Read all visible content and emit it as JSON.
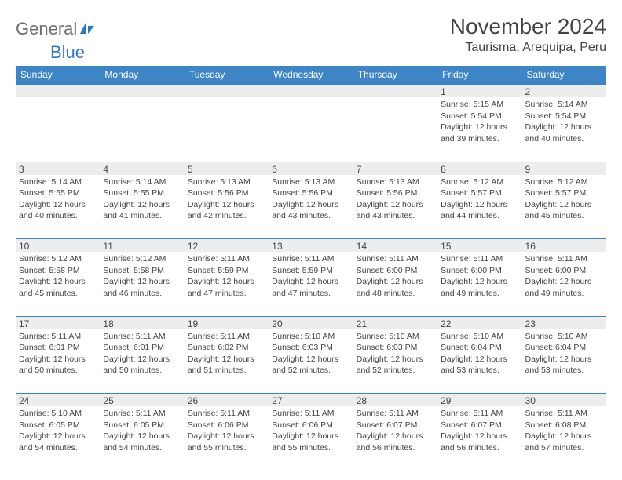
{
  "logo": {
    "text1": "General",
    "text2": "Blue",
    "icon_color": "#2c7ac0",
    "text1_color": "#6d6d6d"
  },
  "title": "November 2024",
  "location": "Taurisma, Arequipa, Peru",
  "colors": {
    "header_bg": "#3d85c6",
    "header_text": "#ffffff",
    "daynum_bg": "#ededed",
    "border": "#3d85c6",
    "text": "#444444",
    "background": "#ffffff"
  },
  "typography": {
    "title_size": 28,
    "location_size": 16,
    "header_size": 12,
    "cell_size": 10.5
  },
  "headers": [
    "Sunday",
    "Monday",
    "Tuesday",
    "Wednesday",
    "Thursday",
    "Friday",
    "Saturday"
  ],
  "weeks": [
    {
      "nums": [
        "",
        "",
        "",
        "",
        "",
        "1",
        "2"
      ],
      "cells": [
        null,
        null,
        null,
        null,
        null,
        {
          "sunrise": "Sunrise: 5:15 AM",
          "sunset": "Sunset: 5:54 PM",
          "day1": "Daylight: 12 hours",
          "day2": "and 39 minutes."
        },
        {
          "sunrise": "Sunrise: 5:14 AM",
          "sunset": "Sunset: 5:54 PM",
          "day1": "Daylight: 12 hours",
          "day2": "and 40 minutes."
        }
      ]
    },
    {
      "nums": [
        "3",
        "4",
        "5",
        "6",
        "7",
        "8",
        "9"
      ],
      "cells": [
        {
          "sunrise": "Sunrise: 5:14 AM",
          "sunset": "Sunset: 5:55 PM",
          "day1": "Daylight: 12 hours",
          "day2": "and 40 minutes."
        },
        {
          "sunrise": "Sunrise: 5:14 AM",
          "sunset": "Sunset: 5:55 PM",
          "day1": "Daylight: 12 hours",
          "day2": "and 41 minutes."
        },
        {
          "sunrise": "Sunrise: 5:13 AM",
          "sunset": "Sunset: 5:56 PM",
          "day1": "Daylight: 12 hours",
          "day2": "and 42 minutes."
        },
        {
          "sunrise": "Sunrise: 5:13 AM",
          "sunset": "Sunset: 5:56 PM",
          "day1": "Daylight: 12 hours",
          "day2": "and 43 minutes."
        },
        {
          "sunrise": "Sunrise: 5:13 AM",
          "sunset": "Sunset: 5:56 PM",
          "day1": "Daylight: 12 hours",
          "day2": "and 43 minutes."
        },
        {
          "sunrise": "Sunrise: 5:12 AM",
          "sunset": "Sunset: 5:57 PM",
          "day1": "Daylight: 12 hours",
          "day2": "and 44 minutes."
        },
        {
          "sunrise": "Sunrise: 5:12 AM",
          "sunset": "Sunset: 5:57 PM",
          "day1": "Daylight: 12 hours",
          "day2": "and 45 minutes."
        }
      ]
    },
    {
      "nums": [
        "10",
        "11",
        "12",
        "13",
        "14",
        "15",
        "16"
      ],
      "cells": [
        {
          "sunrise": "Sunrise: 5:12 AM",
          "sunset": "Sunset: 5:58 PM",
          "day1": "Daylight: 12 hours",
          "day2": "and 45 minutes."
        },
        {
          "sunrise": "Sunrise: 5:12 AM",
          "sunset": "Sunset: 5:58 PM",
          "day1": "Daylight: 12 hours",
          "day2": "and 46 minutes."
        },
        {
          "sunrise": "Sunrise: 5:11 AM",
          "sunset": "Sunset: 5:59 PM",
          "day1": "Daylight: 12 hours",
          "day2": "and 47 minutes."
        },
        {
          "sunrise": "Sunrise: 5:11 AM",
          "sunset": "Sunset: 5:59 PM",
          "day1": "Daylight: 12 hours",
          "day2": "and 47 minutes."
        },
        {
          "sunrise": "Sunrise: 5:11 AM",
          "sunset": "Sunset: 6:00 PM",
          "day1": "Daylight: 12 hours",
          "day2": "and 48 minutes."
        },
        {
          "sunrise": "Sunrise: 5:11 AM",
          "sunset": "Sunset: 6:00 PM",
          "day1": "Daylight: 12 hours",
          "day2": "and 49 minutes."
        },
        {
          "sunrise": "Sunrise: 5:11 AM",
          "sunset": "Sunset: 6:00 PM",
          "day1": "Daylight: 12 hours",
          "day2": "and 49 minutes."
        }
      ]
    },
    {
      "nums": [
        "17",
        "18",
        "19",
        "20",
        "21",
        "22",
        "23"
      ],
      "cells": [
        {
          "sunrise": "Sunrise: 5:11 AM",
          "sunset": "Sunset: 6:01 PM",
          "day1": "Daylight: 12 hours",
          "day2": "and 50 minutes."
        },
        {
          "sunrise": "Sunrise: 5:11 AM",
          "sunset": "Sunset: 6:01 PM",
          "day1": "Daylight: 12 hours",
          "day2": "and 50 minutes."
        },
        {
          "sunrise": "Sunrise: 5:11 AM",
          "sunset": "Sunset: 6:02 PM",
          "day1": "Daylight: 12 hours",
          "day2": "and 51 minutes."
        },
        {
          "sunrise": "Sunrise: 5:10 AM",
          "sunset": "Sunset: 6:03 PM",
          "day1": "Daylight: 12 hours",
          "day2": "and 52 minutes."
        },
        {
          "sunrise": "Sunrise: 5:10 AM",
          "sunset": "Sunset: 6:03 PM",
          "day1": "Daylight: 12 hours",
          "day2": "and 52 minutes."
        },
        {
          "sunrise": "Sunrise: 5:10 AM",
          "sunset": "Sunset: 6:04 PM",
          "day1": "Daylight: 12 hours",
          "day2": "and 53 minutes."
        },
        {
          "sunrise": "Sunrise: 5:10 AM",
          "sunset": "Sunset: 6:04 PM",
          "day1": "Daylight: 12 hours",
          "day2": "and 53 minutes."
        }
      ]
    },
    {
      "nums": [
        "24",
        "25",
        "26",
        "27",
        "28",
        "29",
        "30"
      ],
      "cells": [
        {
          "sunrise": "Sunrise: 5:10 AM",
          "sunset": "Sunset: 6:05 PM",
          "day1": "Daylight: 12 hours",
          "day2": "and 54 minutes."
        },
        {
          "sunrise": "Sunrise: 5:11 AM",
          "sunset": "Sunset: 6:05 PM",
          "day1": "Daylight: 12 hours",
          "day2": "and 54 minutes."
        },
        {
          "sunrise": "Sunrise: 5:11 AM",
          "sunset": "Sunset: 6:06 PM",
          "day1": "Daylight: 12 hours",
          "day2": "and 55 minutes."
        },
        {
          "sunrise": "Sunrise: 5:11 AM",
          "sunset": "Sunset: 6:06 PM",
          "day1": "Daylight: 12 hours",
          "day2": "and 55 minutes."
        },
        {
          "sunrise": "Sunrise: 5:11 AM",
          "sunset": "Sunset: 6:07 PM",
          "day1": "Daylight: 12 hours",
          "day2": "and 56 minutes."
        },
        {
          "sunrise": "Sunrise: 5:11 AM",
          "sunset": "Sunset: 6:07 PM",
          "day1": "Daylight: 12 hours",
          "day2": "and 56 minutes."
        },
        {
          "sunrise": "Sunrise: 5:11 AM",
          "sunset": "Sunset: 6:08 PM",
          "day1": "Daylight: 12 hours",
          "day2": "and 57 minutes."
        }
      ]
    }
  ]
}
